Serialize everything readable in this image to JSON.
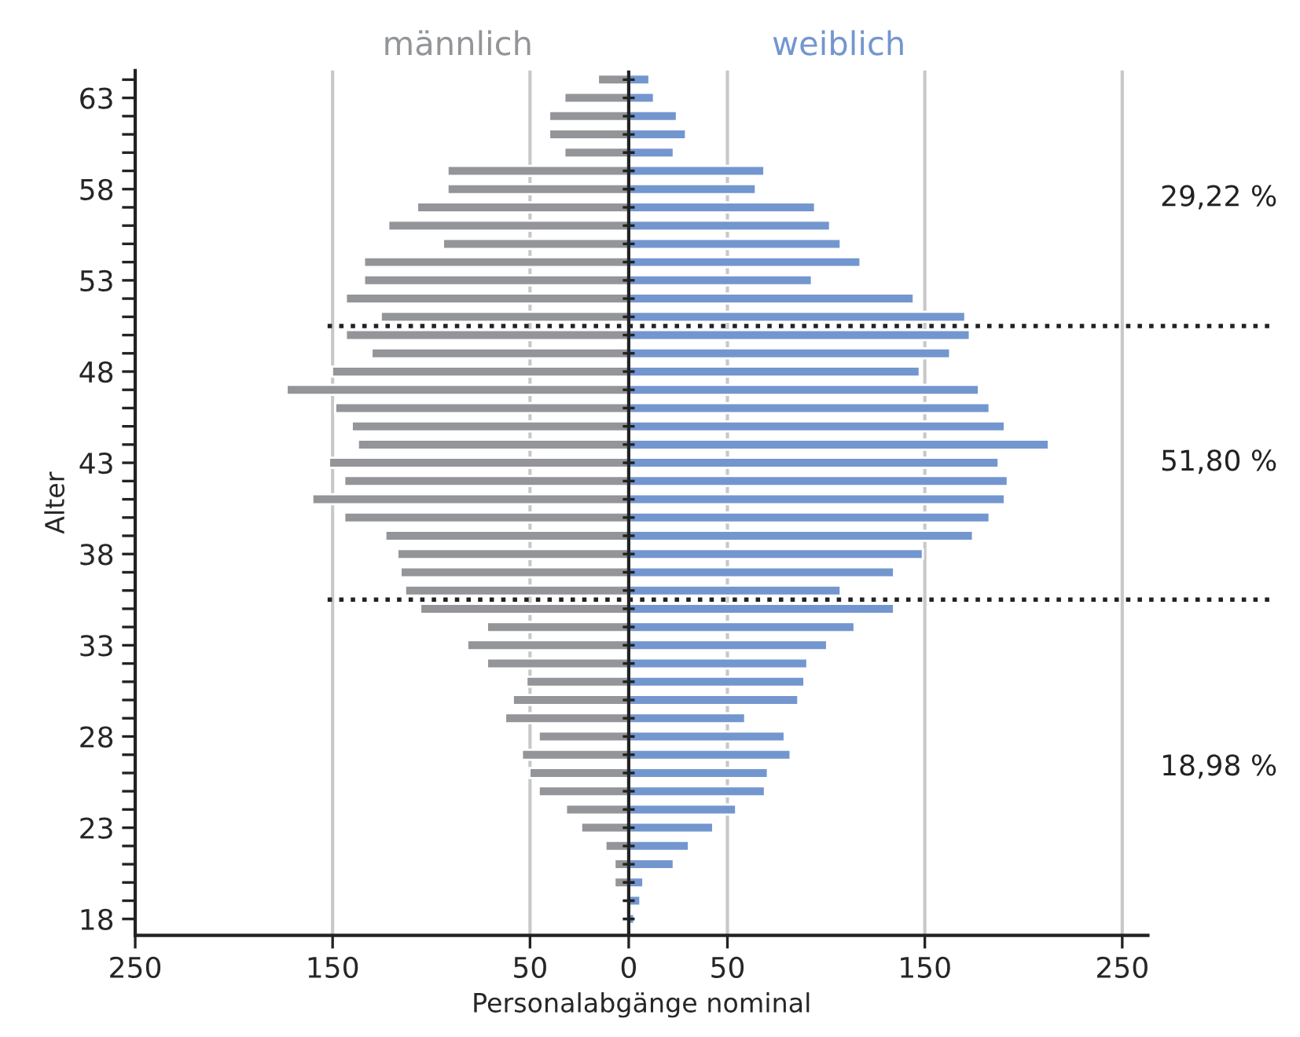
{
  "chart_data": {
    "type": "bar",
    "orientation": "horizontal",
    "stacked": true,
    "xlabel": "Personalabgänge nominal",
    "ylabel": "Alter",
    "x": [
      64,
      63,
      62,
      61,
      60,
      59,
      58,
      57,
      56,
      55,
      54,
      53,
      52,
      51,
      50,
      49,
      48,
      47,
      46,
      45,
      44,
      43,
      42,
      41,
      40,
      39,
      38,
      37,
      36,
      35,
      34,
      33,
      32,
      31,
      30,
      29,
      28,
      27,
      26,
      25,
      24,
      23,
      22,
      21,
      20,
      19,
      18
    ],
    "series": [
      {
        "name": "männlich",
        "color": "#939598",
        "values": [
          -15.6,
          -32.6,
          -40.3,
          -40.3,
          -32.6,
          -91.8,
          -91.8,
          -107.2,
          -121.8,
          -94.1,
          -134.1,
          -134.1,
          -143.3,
          -125.6,
          -143.3,
          -130.3,
          -150.3,
          -173.3,
          -148.7,
          -140.3,
          -137.2,
          -151.8,
          -144.1,
          -160.3,
          -144.1,
          -123.3,
          -117.2,
          -115.6,
          -113.3,
          -105.6,
          -71.8,
          -81.8,
          -71.8,
          -51.8,
          -58.7,
          -62.6,
          -45.6,
          -54.1,
          -50.3,
          -45.6,
          -31.8,
          -24.1,
          -11.8,
          -7.2,
          -7.2,
          null,
          null
        ]
      },
      {
        "name": "weiblich",
        "color": "#7396cf",
        "values": [
          10.5,
          12.8,
          24.4,
          29,
          22.8,
          68.7,
          64.4,
          94.4,
          102,
          107.4,
          117.4,
          92.8,
          144.4,
          170.5,
          172.8,
          162.8,
          147.4,
          177.4,
          182.8,
          190.5,
          212.8,
          187.4,
          192,
          190.5,
          182.8,
          174.4,
          149,
          134.4,
          107.4,
          134.4,
          114.4,
          100.5,
          90.5,
          89,
          85.9,
          59,
          79,
          82,
          70.5,
          69,
          54.4,
          42.8,
          30.5,
          22.8,
          7.4,
          5.9,
          2.8
        ]
      }
    ],
    "xlim": [
      -250,
      263
    ],
    "xticks": [
      {
        "value": -250,
        "label": "250"
      },
      {
        "value": -150,
        "label": "150"
      },
      {
        "value": -50,
        "label": "50"
      },
      0,
      50,
      150,
      250
    ],
    "ylim": [
      17.1,
      64.5
    ],
    "yticks": [
      18,
      {
        "value": 19,
        "label": null
      },
      {
        "value": 20,
        "label": null
      },
      {
        "value": 21,
        "label": null
      },
      {
        "value": 22,
        "label": null
      },
      23,
      {
        "value": 24,
        "label": null
      },
      {
        "value": 25,
        "label": null
      },
      {
        "value": 26,
        "label": null
      },
      {
        "value": 27,
        "label": null
      },
      28,
      {
        "value": 29,
        "label": null
      },
      {
        "value": 30,
        "label": null
      },
      {
        "value": 31,
        "label": null
      },
      {
        "value": 32,
        "label": null
      },
      33,
      {
        "value": 34,
        "label": null
      },
      {
        "value": 35,
        "label": null
      },
      {
        "value": 36,
        "label": null
      },
      {
        "value": 37,
        "label": null
      },
      38,
      {
        "value": 39,
        "label": null
      },
      {
        "value": 40,
        "label": null
      },
      {
        "value": 41,
        "label": null
      },
      {
        "value": 42,
        "label": null
      },
      43,
      {
        "value": 44,
        "label": null
      },
      {
        "value": 45,
        "label": null
      },
      {
        "value": 46,
        "label": null
      },
      {
        "value": 47,
        "label": null
      },
      48,
      {
        "value": 49,
        "label": null
      },
      {
        "value": 50,
        "label": null
      },
      {
        "value": 51,
        "label": null
      },
      {
        "value": 52,
        "label": null
      },
      53,
      {
        "value": 54,
        "label": null
      },
      {
        "value": 55,
        "label": null
      },
      {
        "value": 56,
        "label": null
      },
      {
        "value": 57,
        "label": null
      },
      58,
      {
        "value": 59,
        "label": null
      },
      {
        "value": 60,
        "label": null
      },
      {
        "value": 61,
        "label": null
      },
      {
        "value": 62,
        "label": null
      },
      63,
      {
        "value": 64,
        "label": null
      }
    ],
    "grid": "x",
    "ref_lines": [
      {
        "axis": "y",
        "value": 50.5,
        "color": "#222222",
        "line_style": "dotted"
      },
      {
        "axis": "y",
        "value": 35.5,
        "color": "#222222",
        "line_style": "dotted"
      }
    ],
    "annotations": [
      "29,22 %",
      "51,80 %",
      "18,98 %"
    ]
  }
}
